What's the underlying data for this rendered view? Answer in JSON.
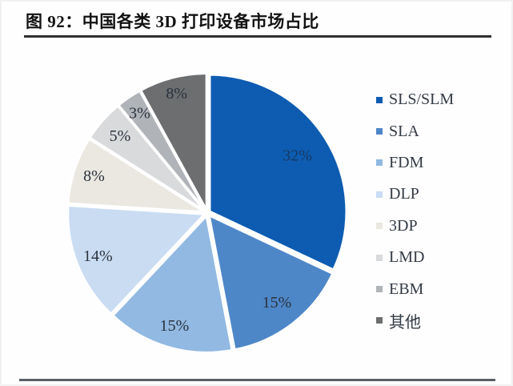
{
  "figure": {
    "title": "图 92：中国各类 3D 打印设备市场占比"
  },
  "chart_data": {
    "type": "pie",
    "title": "中国各类 3D 打印设备市场占比",
    "unit": "%",
    "direction": "clockwise",
    "start_angle_deg": 0,
    "legend_position": "right",
    "slices": [
      {
        "id": "sls-slm",
        "label": "SLS/SLM",
        "value": 32,
        "data_label": "32%",
        "color": "#0d5cb1",
        "data_label_color": "#153a64"
      },
      {
        "id": "sla",
        "label": "SLA",
        "value": 15,
        "data_label": "15%",
        "color": "#4e87c8",
        "data_label_color": "#2a323d"
      },
      {
        "id": "fdm",
        "label": "FDM",
        "value": 15,
        "data_label": "15%",
        "color": "#91b9e2",
        "data_label_color": "#2a323d"
      },
      {
        "id": "dlp",
        "label": "DLP",
        "value": 14,
        "data_label": "14%",
        "color": "#c9dcf2",
        "data_label_color": "#2a323d"
      },
      {
        "id": "3dp",
        "label": "3DP",
        "value": 8,
        "data_label": "8%",
        "color": "#ebe8e1",
        "data_label_color": "#2a323d"
      },
      {
        "id": "lmd",
        "label": "LMD",
        "value": 5,
        "data_label": "5%",
        "color": "#d9dadc",
        "data_label_color": "#2a323d"
      },
      {
        "id": "ebm",
        "label": "EBM",
        "value": 3,
        "data_label": "3%",
        "color": "#b0b3b8",
        "data_label_color": "#2a323d"
      },
      {
        "id": "other",
        "label": "其他",
        "value": 8,
        "data_label": "8%",
        "color": "#6c6e70",
        "data_label_color": "#2a323d"
      }
    ]
  }
}
